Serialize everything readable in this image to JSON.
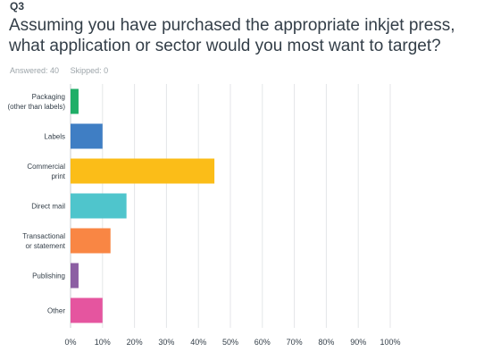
{
  "question": {
    "number": "Q3",
    "title": "Assuming you have purchased the appropriate inkjet press, what application or sector would you most want to target?",
    "answered": "Answered: 40",
    "skipped": "Skipped: 0"
  },
  "chart_data": {
    "type": "bar",
    "orientation": "horizontal",
    "categories": [
      [
        "Packaging",
        "(other than labels)"
      ],
      [
        "Labels"
      ],
      [
        "Commercial",
        "print"
      ],
      [
        "Direct mail"
      ],
      [
        "Transactional",
        "or statement"
      ],
      [
        "Publishing"
      ],
      [
        "Other"
      ]
    ],
    "values": [
      2.5,
      10,
      45,
      17.5,
      12.5,
      2.5,
      10
    ],
    "colors": [
      "#1fae67",
      "#3f7ec4",
      "#fbbd18",
      "#4fc5cc",
      "#f98644",
      "#8c5fa3",
      "#e5559f"
    ],
    "xlim": [
      0,
      100
    ],
    "x_ticks": [
      "0%",
      "10%",
      "20%",
      "30%",
      "40%",
      "50%",
      "60%",
      "70%",
      "80%",
      "90%",
      "100%"
    ],
    "grid": true,
    "xlabel": "",
    "ylabel": ""
  }
}
